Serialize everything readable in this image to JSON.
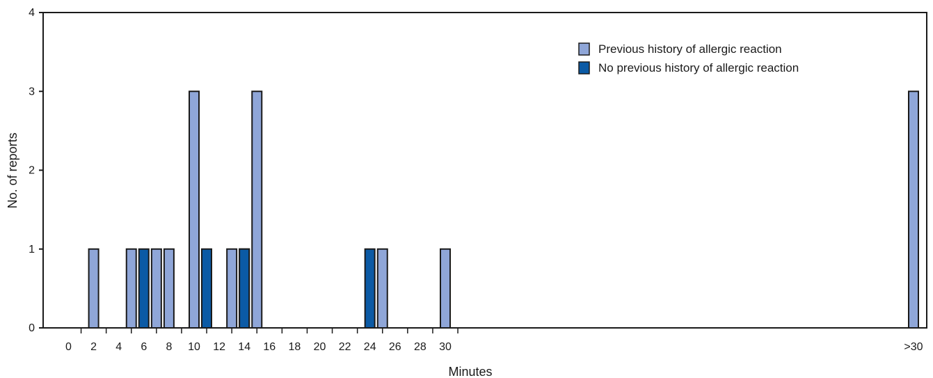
{
  "chart_data": {
    "type": "bar",
    "xlabel": "Minutes",
    "ylabel": "No. of reports",
    "ylim": [
      0,
      4
    ],
    "y_ticks": [
      "0",
      "1",
      "2",
      "3",
      "4"
    ],
    "x_tick_labels": [
      "0",
      "2",
      "4",
      "6",
      "8",
      "10",
      "12",
      "14",
      "16",
      "18",
      "20",
      "22",
      "24",
      "26",
      "28",
      "30",
      ">30"
    ],
    "legend_position": "top-right",
    "series": [
      {
        "name": "Previous history of allergic reaction",
        "color": "#8fa6d8",
        "points": [
          {
            "x": 2,
            "y": 1
          },
          {
            "x": 5,
            "y": 1
          },
          {
            "x": 7,
            "y": 1
          },
          {
            "x": 8,
            "y": 1
          },
          {
            "x": 10,
            "y": 3
          },
          {
            "x": 13,
            "y": 1
          },
          {
            "x": 14,
            "y": 1
          },
          {
            "x": 15,
            "y": 3
          },
          {
            "x": 25,
            "y": 1
          },
          {
            "x": 30,
            "y": 1
          },
          {
            "x": ">30",
            "y": 3
          }
        ]
      },
      {
        "name": "No previous history of allergic reaction",
        "color": "#0b5aa5",
        "points": [
          {
            "x": 5,
            "y": 1
          },
          {
            "x": 10,
            "y": 1
          },
          {
            "x": 13,
            "y": 1
          },
          {
            "x": 23,
            "y": 1
          }
        ]
      }
    ]
  }
}
